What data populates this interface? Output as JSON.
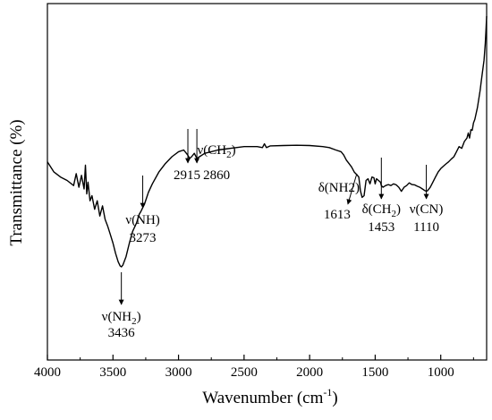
{
  "chart_data": {
    "type": "line",
    "xlabel": "Wavenumber (cm",
    "xlabel_sup": "-1",
    "xlabel_close": ")",
    "ylabel": "Transmittance (%)",
    "xlim": [
      4000,
      650
    ],
    "x_reversed": true,
    "y_ticks_shown": false,
    "grid": false,
    "legend": "none",
    "line_color": "#000000",
    "x_ticks": [
      {
        "value": 4000,
        "label": "4000"
      },
      {
        "value": 3500,
        "label": "3500"
      },
      {
        "value": 3000,
        "label": "3000"
      },
      {
        "value": 2500,
        "label": "2500"
      },
      {
        "value": 2000,
        "label": "2000"
      },
      {
        "value": 1500,
        "label": "1500"
      },
      {
        "value": 1000,
        "label": "1000"
      }
    ],
    "series": [
      {
        "x": [
          4000,
          3950,
          3900,
          3850,
          3800,
          3780,
          3760,
          3740,
          3720,
          3710,
          3700,
          3690,
          3675,
          3660,
          3640,
          3620,
          3600,
          3580,
          3560,
          3540,
          3520,
          3500,
          3480,
          3460,
          3445,
          3436,
          3425,
          3400,
          3375,
          3350,
          3320,
          3300,
          3285,
          3273,
          3260,
          3230,
          3200,
          3150,
          3100,
          3050,
          3000,
          2960,
          2930,
          2915,
          2900,
          2880,
          2860,
          2840,
          2800,
          2750,
          2700,
          2600,
          2500,
          2400,
          2360,
          2345,
          2330,
          2300,
          2200,
          2100,
          2000,
          1900,
          1850,
          1800,
          1760,
          1740,
          1720,
          1700,
          1680,
          1660,
          1640,
          1625,
          1613,
          1600,
          1585,
          1570,
          1555,
          1540,
          1525,
          1510,
          1500,
          1490,
          1475,
          1460,
          1453,
          1440,
          1420,
          1400,
          1380,
          1360,
          1340,
          1320,
          1300,
          1280,
          1260,
          1240,
          1220,
          1200,
          1180,
          1160,
          1140,
          1120,
          1110,
          1100,
          1080,
          1060,
          1040,
          1020,
          1000,
          980,
          960,
          940,
          920,
          900,
          880,
          860,
          840,
          820,
          800,
          790,
          780,
          770,
          760,
          750,
          740,
          720,
          700,
          690,
          680,
          670,
          660,
          655,
          650
        ],
        "y": [
          31,
          28,
          26.5,
          25.5,
          24,
          27.5,
          23.5,
          27,
          23,
          30,
          21.5,
          25,
          19.5,
          21,
          17,
          19.5,
          15,
          18,
          14,
          12,
          9.5,
          7,
          4,
          1.5,
          0.3,
          0,
          0.5,
          3,
          7,
          10.5,
          13,
          15.5,
          16.5,
          17.5,
          18.5,
          22,
          24.5,
          28,
          30.5,
          32.5,
          34,
          34.5,
          33,
          32,
          32.5,
          33.5,
          32,
          32.5,
          33.5,
          34,
          34.5,
          35,
          35.5,
          35.5,
          35.2,
          36.3,
          35.2,
          35.7,
          35.8,
          35.9,
          35.8,
          35.5,
          35.2,
          34.5,
          34,
          33,
          31.5,
          30.5,
          29.5,
          28,
          27.2,
          26.5,
          22.5,
          20.5,
          21,
          25.5,
          26,
          24.5,
          26.5,
          26.3,
          24.5,
          26,
          25.5,
          25,
          24,
          23.5,
          24,
          24.3,
          24,
          24.5,
          24.2,
          23.5,
          22.3,
          23.5,
          24,
          24.8,
          24.3,
          24.2,
          23.8,
          23.5,
          23,
          22.5,
          22.3,
          22.5,
          23.5,
          25,
          26.5,
          28,
          29,
          29.7,
          30.4,
          31,
          31.8,
          32.5,
          34,
          35.5,
          35,
          37,
          38,
          39.5,
          38,
          40.5,
          40.3,
          42.5,
          43.5,
          47,
          52,
          55,
          58,
          61,
          66,
          70,
          74
        ]
      }
    ],
    "annotations": [
      {
        "line1": "ν(NH",
        "sub": "2",
        "line1_end": ")",
        "line2": "3436",
        "x": 3436,
        "pointer": "down"
      },
      {
        "line1": "ν(NH)",
        "sub": "",
        "line1_end": "",
        "line2": "3273",
        "x": 3273,
        "pointer": "down"
      },
      {
        "line1": "",
        "sub": "",
        "line1_end": "",
        "line2": "2915",
        "x": 2915,
        "pointer": "down"
      },
      {
        "line1": "ν(CH",
        "sub": "2",
        "line1_end": ")",
        "line2": "2860",
        "x": 2860,
        "pointer": "down"
      },
      {
        "line1": "δ(NH2)",
        "sub": "",
        "line1_end": "",
        "line2": "1613",
        "x": 1613,
        "pointer": "down-left"
      },
      {
        "line1": "δ(CH",
        "sub": "2",
        "line1_end": ")",
        "line2": "1453",
        "x": 1453,
        "pointer": "down"
      },
      {
        "line1": "ν(CN)",
        "sub": "",
        "line1_end": "",
        "line2": "1110",
        "x": 1110,
        "pointer": "down"
      }
    ]
  }
}
